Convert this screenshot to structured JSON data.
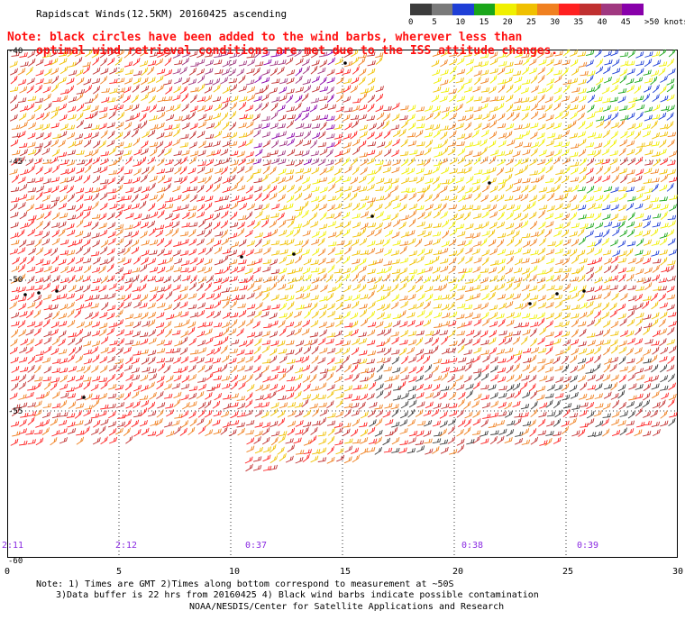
{
  "title": "Rapidscat Winds(12.5KM) 20160425 ascending",
  "note_line1": "Note: black circles have been added to the wind barbs, wherever less than",
  "note_line2": "optimal wind retrieval conditions are met due to the ISS attitude changes.",
  "legend": {
    "labels": [
      "0",
      "5",
      "10",
      "15",
      "20",
      "25",
      "30",
      "35",
      "40",
      "45",
      ">50 knots"
    ],
    "colors": [
      "#3c3c3c",
      "#7a7a7a",
      "#1f3fd6",
      "#1aa61a",
      "#f0f000",
      "#f0c000",
      "#f08020",
      "#ff2020",
      "#c03030",
      "#a03880",
      "#8800aa"
    ]
  },
  "lat_labels": [
    "-40",
    "-45",
    "-50",
    "-55",
    "-60"
  ],
  "lon_labels": [
    "0",
    "5",
    "10",
    "15",
    "20",
    "25",
    "30"
  ],
  "time_labels": [
    "2:11",
    "2:12",
    "0:37",
    "0:38",
    "0:39"
  ],
  "footer": {
    "line1": "Note: 1) Times are GMT 2)Times along bottom correspond to measurement at ~50S",
    "line2": "3)Data buffer is 22 hrs from 20160425 4) Black wind barbs indicate possible contamination",
    "line3": "NOAA/NESDIS/Center for Satellite Applications and Research"
  }
}
